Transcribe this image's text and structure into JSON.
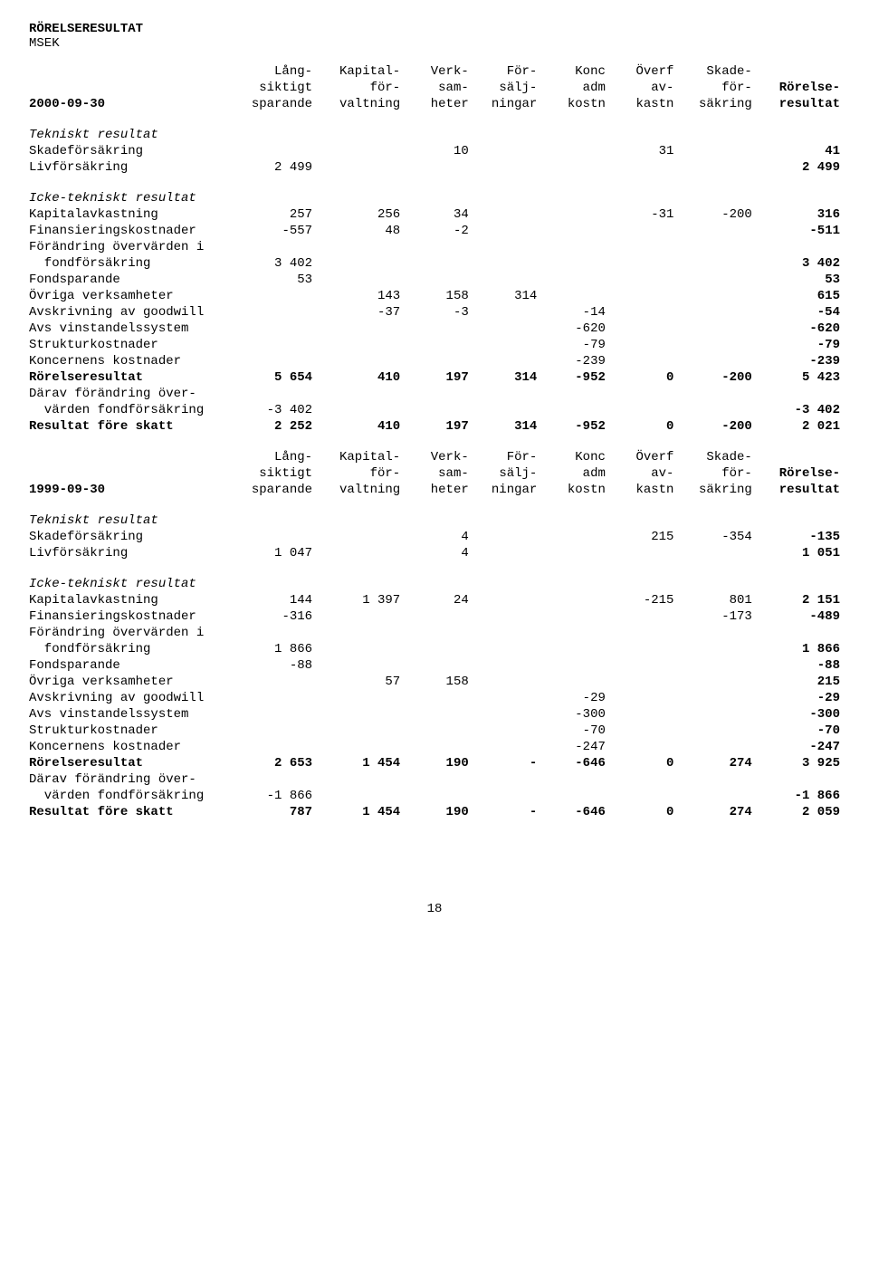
{
  "title": "RÖRELSERESULTAT",
  "unit": "MSEK",
  "page_number": "18",
  "header": {
    "row1": [
      "Lång-",
      "Kapital-",
      "Verk-",
      "För-",
      "Konc",
      "Överf",
      "Skade-",
      ""
    ],
    "row2": [
      "siktigt",
      "för-",
      "sam-",
      "sälj-",
      "adm",
      "av-",
      "för-",
      "Rörelse-"
    ],
    "row3": [
      "sparande",
      "valtning",
      "heter",
      "ningar",
      "kostn",
      "kastn",
      "säkring",
      "resultat"
    ]
  },
  "sections": {
    "tekniskt": "Tekniskt resultat",
    "icke_tekniskt": "Icke-tekniskt resultat"
  },
  "period1": {
    "label": "2000-09-30",
    "rows": [
      {
        "l": "Skadeförsäkring",
        "v": [
          "",
          "",
          "10",
          "",
          "",
          "31",
          "",
          "41"
        ],
        "bold8": true
      },
      {
        "l": "Livförsäkring",
        "v": [
          "2 499",
          "",
          "",
          "",
          "",
          "",
          "",
          "2 499"
        ],
        "bold8": true
      },
      {
        "spacer": true
      },
      {
        "l": "Kapitalavkastning",
        "v": [
          "257",
          "256",
          "34",
          "",
          "",
          "-31",
          "-200",
          "316"
        ],
        "bold8": true
      },
      {
        "l": "Finansieringskostnader",
        "v": [
          "-557",
          "48",
          "-2",
          "",
          "",
          "",
          "",
          "-511"
        ],
        "bold8": true
      },
      {
        "l": "Förändring övervärden i",
        "v": [
          "",
          "",
          "",
          "",
          "",
          "",
          "",
          ""
        ]
      },
      {
        "l": "  fondförsäkring",
        "v": [
          "3 402",
          "",
          "",
          "",
          "",
          "",
          "",
          "3 402"
        ],
        "bold8": true
      },
      {
        "l": "Fondsparande",
        "v": [
          "53",
          "",
          "",
          "",
          "",
          "",
          "",
          "53"
        ],
        "bold8": true
      },
      {
        "l": "Övriga verksamheter",
        "v": [
          "",
          "143",
          "158",
          "314",
          "",
          "",
          "",
          "615"
        ],
        "bold8": true
      },
      {
        "l": "Avskrivning av goodwill",
        "v": [
          "",
          "-37",
          "-3",
          "",
          "-14",
          "",
          "",
          "-54"
        ],
        "bold8": true
      },
      {
        "l": "Avs vinstandelssystem",
        "v": [
          "",
          "",
          "",
          "",
          "-620",
          "",
          "",
          "-620"
        ],
        "bold8": true
      },
      {
        "l": "Strukturkostnader",
        "v": [
          "",
          "",
          "",
          "",
          "-79",
          "",
          "",
          "-79"
        ],
        "bold8": true
      },
      {
        "l": "Koncernens kostnader",
        "v": [
          "",
          "",
          "",
          "",
          "-239",
          "",
          "",
          "-239"
        ],
        "bold8": true
      },
      {
        "l": "Rörelseresultat",
        "v": [
          "5 654",
          "410",
          "197",
          "314",
          "-952",
          "0",
          "-200",
          "5 423"
        ],
        "boldAll": true
      },
      {
        "l": "Därav förändring över-",
        "v": [
          "",
          "",
          "",
          "",
          "",
          "",
          "",
          ""
        ]
      },
      {
        "l": "  värden fondförsäkring",
        "v": [
          "-3 402",
          "",
          "",
          "",
          "",
          "",
          "",
          "-3 402"
        ],
        "bold8": true
      },
      {
        "l": "Resultat före skatt",
        "v": [
          "2 252",
          "410",
          "197",
          "314",
          "-952",
          "0",
          "-200",
          "2 021"
        ],
        "boldAll": true
      }
    ]
  },
  "period2": {
    "label": "1999-09-30",
    "rows": [
      {
        "l": "Skadeförsäkring",
        "v": [
          "",
          "",
          "4",
          "",
          "",
          "215",
          "-354",
          "-135"
        ],
        "bold8": true
      },
      {
        "l": "Livförsäkring",
        "v": [
          "1 047",
          "",
          "4",
          "",
          "",
          "",
          "",
          "1 051"
        ],
        "bold8": true
      },
      {
        "spacer": true
      },
      {
        "l": "Kapitalavkastning",
        "v": [
          "144",
          "1 397",
          "24",
          "",
          "",
          "-215",
          "801",
          "2 151"
        ],
        "bold8": true
      },
      {
        "l": "Finansieringskostnader",
        "v": [
          "-316",
          "",
          "",
          "",
          "",
          "",
          "-173",
          "-489"
        ],
        "bold8": true
      },
      {
        "l": "Förändring övervärden i",
        "v": [
          "",
          "",
          "",
          "",
          "",
          "",
          "",
          ""
        ]
      },
      {
        "l": "  fondförsäkring",
        "v": [
          "1 866",
          "",
          "",
          "",
          "",
          "",
          "",
          "1 866"
        ],
        "bold8": true
      },
      {
        "l": "Fondsparande",
        "v": [
          "-88",
          "",
          "",
          "",
          "",
          "",
          "",
          "-88"
        ],
        "bold8": true
      },
      {
        "l": "Övriga verksamheter",
        "v": [
          "",
          "57",
          "158",
          "",
          "",
          "",
          "",
          "215"
        ],
        "bold8": true
      },
      {
        "l": "Avskrivning av goodwill",
        "v": [
          "",
          "",
          "",
          "",
          "-29",
          "",
          "",
          "-29"
        ],
        "bold8": true
      },
      {
        "l": "Avs vinstandelssystem",
        "v": [
          "",
          "",
          "",
          "",
          "-300",
          "",
          "",
          "-300"
        ],
        "bold8": true
      },
      {
        "l": "Strukturkostnader",
        "v": [
          "",
          "",
          "",
          "",
          "-70",
          "",
          "",
          "-70"
        ],
        "bold8": true
      },
      {
        "l": "Koncernens kostnader",
        "v": [
          "",
          "",
          "",
          "",
          "-247",
          "",
          "",
          "-247"
        ],
        "bold8": true
      },
      {
        "l": "Rörelseresultat",
        "v": [
          "2 653",
          "1 454",
          "190",
          "-",
          "-646",
          "0",
          "274",
          "3 925"
        ],
        "boldAll": true
      },
      {
        "l": "Därav förändring över-",
        "v": [
          "",
          "",
          "",
          "",
          "",
          "",
          "",
          ""
        ]
      },
      {
        "l": "  värden fondförsäkring",
        "v": [
          "-1 866",
          "",
          "",
          "",
          "",
          "",
          "",
          "-1 866"
        ],
        "bold8": true
      },
      {
        "l": "Resultat före skatt",
        "v": [
          "787",
          "1 454",
          "190",
          "-",
          "-646",
          "0",
          "274",
          "2 059"
        ],
        "boldAll": true
      }
    ]
  }
}
